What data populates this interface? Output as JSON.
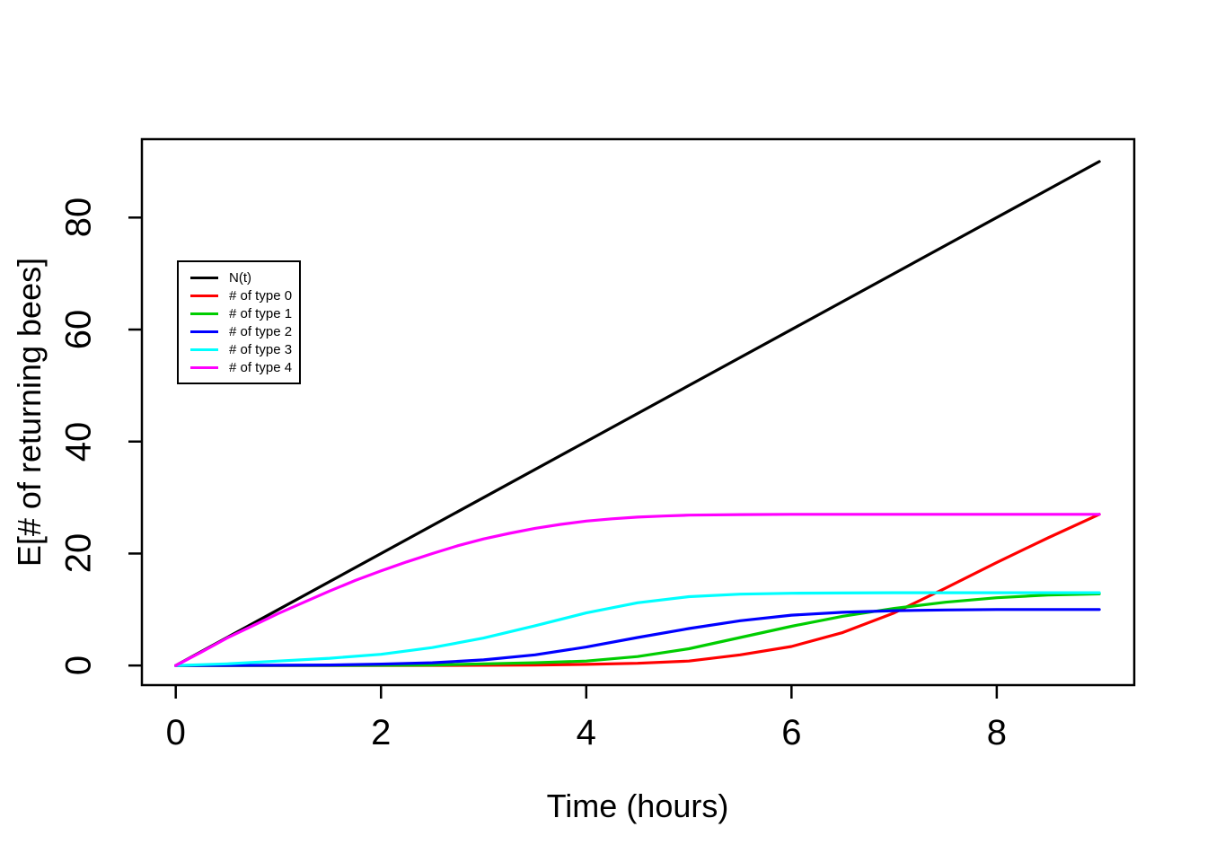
{
  "figure": {
    "background": "#ffffff",
    "x_axis": {
      "title": "Time (hours)",
      "ticks": [
        0,
        2,
        4,
        6,
        8
      ]
    },
    "y_axis": {
      "title": "E[# of returning bees]",
      "ticks": [
        0,
        20,
        40,
        60,
        80
      ]
    },
    "legend": {
      "entries": [
        {
          "label": "N(t)",
          "color": "#000000"
        },
        {
          "label": "# of type 0",
          "color": "#FF0000"
        },
        {
          "label": "# of type 1",
          "color": "#00CD00"
        },
        {
          "label": "# of type 2",
          "color": "#0000FF"
        },
        {
          "label": "# of type 3",
          "color": "#00FFFF"
        },
        {
          "label": "# of type 4",
          "color": "#FF00FF"
        }
      ]
    }
  },
  "chart_data": {
    "type": "line",
    "title": "",
    "xlabel": "Time (hours)",
    "ylabel": "E[# of returning bees]",
    "xlim": [
      -0.33,
      9.34
    ],
    "ylim": [
      -3.5,
      94
    ],
    "x_ticks": [
      0,
      2,
      4,
      6,
      8
    ],
    "y_ticks": [
      0,
      20,
      40,
      60,
      80
    ],
    "grid": false,
    "legend_position": "upper-left-inside",
    "series": [
      {
        "id": "N",
        "name": "N(t)",
        "color": "#000000",
        "points": [
          [
            0,
            0
          ],
          [
            9,
            90
          ]
        ]
      },
      {
        "id": "type0",
        "name": "# of type 0",
        "color": "#FF0000",
        "points": [
          [
            0,
            0
          ],
          [
            1,
            0
          ],
          [
            2,
            0
          ],
          [
            3,
            0.05
          ],
          [
            3.5,
            0.1
          ],
          [
            4,
            0.2
          ],
          [
            4.5,
            0.4
          ],
          [
            5,
            0.8
          ],
          [
            5.5,
            1.9
          ],
          [
            6,
            3.4
          ],
          [
            6.5,
            5.9
          ],
          [
            7,
            9.4
          ],
          [
            7.5,
            13.8
          ],
          [
            8,
            18.4
          ],
          [
            8.5,
            22.8
          ],
          [
            9,
            27
          ]
        ]
      },
      {
        "id": "type1",
        "name": "# of type 1",
        "color": "#00CD00",
        "points": [
          [
            0,
            0
          ],
          [
            1,
            0
          ],
          [
            2,
            0.05
          ],
          [
            2.5,
            0.1
          ],
          [
            3,
            0.3
          ],
          [
            3.5,
            0.5
          ],
          [
            4,
            0.8
          ],
          [
            4.5,
            1.6
          ],
          [
            5,
            3.0
          ],
          [
            5.5,
            5.0
          ],
          [
            6,
            7.0
          ],
          [
            6.5,
            8.8
          ],
          [
            7,
            10.2
          ],
          [
            7.5,
            11.3
          ],
          [
            8,
            12.1
          ],
          [
            8.5,
            12.6
          ],
          [
            9,
            12.8
          ]
        ]
      },
      {
        "id": "type2",
        "name": "# of type 2",
        "color": "#0000FF",
        "points": [
          [
            0,
            0
          ],
          [
            1,
            0.05
          ],
          [
            1.5,
            0.1
          ],
          [
            2,
            0.25
          ],
          [
            2.5,
            0.5
          ],
          [
            3,
            1.0
          ],
          [
            3.5,
            1.9
          ],
          [
            4,
            3.3
          ],
          [
            4.5,
            5.0
          ],
          [
            5,
            6.6
          ],
          [
            5.5,
            8.0
          ],
          [
            6,
            9.0
          ],
          [
            6.5,
            9.5
          ],
          [
            7,
            9.8
          ],
          [
            7.5,
            9.93
          ],
          [
            8,
            10
          ],
          [
            9,
            10
          ]
        ]
      },
      {
        "id": "type3",
        "name": "# of type 3",
        "color": "#00FFFF",
        "points": [
          [
            0,
            0
          ],
          [
            0.5,
            0.3
          ],
          [
            1,
            0.8
          ],
          [
            1.5,
            1.3
          ],
          [
            2,
            2.0
          ],
          [
            2.5,
            3.2
          ],
          [
            3,
            4.9
          ],
          [
            3.5,
            7.1
          ],
          [
            4,
            9.4
          ],
          [
            4.5,
            11.2
          ],
          [
            5,
            12.3
          ],
          [
            5.5,
            12.75
          ],
          [
            6,
            12.9
          ],
          [
            6.5,
            12.95
          ],
          [
            7,
            13
          ],
          [
            8,
            13
          ],
          [
            9,
            13
          ]
        ]
      },
      {
        "id": "type4",
        "name": "# of type 4",
        "color": "#FF00FF",
        "points": [
          [
            0,
            0
          ],
          [
            0.25,
            2.4
          ],
          [
            0.5,
            4.9
          ],
          [
            0.75,
            7.1
          ],
          [
            1,
            9.3
          ],
          [
            1.25,
            11.3
          ],
          [
            1.5,
            13.3
          ],
          [
            1.75,
            15.2
          ],
          [
            2,
            16.9
          ],
          [
            2.25,
            18.5
          ],
          [
            2.5,
            20.0
          ],
          [
            2.75,
            21.4
          ],
          [
            3,
            22.6
          ],
          [
            3.25,
            23.6
          ],
          [
            3.5,
            24.5
          ],
          [
            3.75,
            25.2
          ],
          [
            4,
            25.8
          ],
          [
            4.25,
            26.2
          ],
          [
            4.5,
            26.5
          ],
          [
            4.75,
            26.7
          ],
          [
            5,
            26.85
          ],
          [
            5.5,
            26.95
          ],
          [
            6,
            27
          ],
          [
            7,
            27
          ],
          [
            8,
            27
          ],
          [
            9,
            27
          ]
        ]
      }
    ]
  }
}
